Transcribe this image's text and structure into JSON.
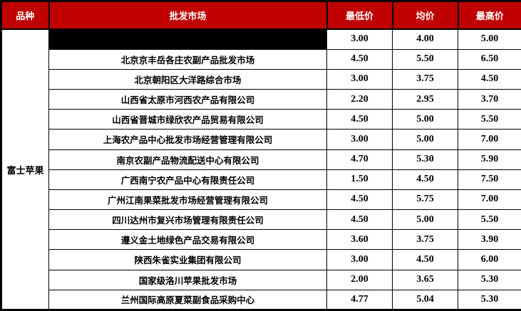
{
  "table": {
    "columns": [
      "品种",
      "批发市场",
      "最低价",
      "均价",
      "最高价"
    ],
    "variety": "富士苹果",
    "rows": [
      {
        "market": "",
        "redacted": true,
        "min": "3.00",
        "avg": "4.00",
        "max": "5.00"
      },
      {
        "market": "北京京丰岳各庄农副产品批发市场",
        "redacted": false,
        "min": "4.50",
        "avg": "5.50",
        "max": "6.50"
      },
      {
        "market": "北京朝阳区大洋路综合市场",
        "redacted": false,
        "min": "3.00",
        "avg": "3.75",
        "max": "4.50"
      },
      {
        "market": "山西省太原市河西农产品有限公司",
        "redacted": false,
        "min": "2.20",
        "avg": "2.95",
        "max": "3.70"
      },
      {
        "market": "山西省晋城市绿欣农产品贸易有限公司",
        "redacted": false,
        "min": "4.50",
        "avg": "5.00",
        "max": "5.50"
      },
      {
        "market": "上海农产品中心批发市场经营管理有限公司",
        "redacted": false,
        "min": "3.00",
        "avg": "5.00",
        "max": "7.00"
      },
      {
        "market": "南京农副产品物流配送中心有限公司",
        "redacted": false,
        "min": "4.70",
        "avg": "5.30",
        "max": "5.90"
      },
      {
        "market": "广西南宁农产品中心有限责任公司",
        "redacted": false,
        "min": "1.50",
        "avg": "4.50",
        "max": "7.50"
      },
      {
        "market": "广州江南果菜批发市场经营管理有限公司",
        "redacted": false,
        "min": "4.50",
        "avg": "5.75",
        "max": "7.00"
      },
      {
        "market": "四川达州市复兴市场管理有限责任公司",
        "redacted": false,
        "min": "4.50",
        "avg": "5.00",
        "max": "5.50"
      },
      {
        "market": "遵义金土地绿色产品交易有限公司",
        "redacted": false,
        "min": "3.60",
        "avg": "3.75",
        "max": "3.90"
      },
      {
        "market": "陕西朱雀实业集团有限公司",
        "redacted": false,
        "min": "3.00",
        "avg": "4.50",
        "max": "6.00"
      },
      {
        "market": "国家级洛川苹果批发市场",
        "redacted": false,
        "min": "2.00",
        "avg": "3.65",
        "max": "5.30"
      },
      {
        "market": "兰州国际高原夏菜副食品采购中心",
        "redacted": false,
        "min": "4.77",
        "avg": "5.04",
        "max": "5.30"
      }
    ]
  },
  "colors": {
    "header_bg": "#C00000",
    "header_text": "#FFFFFF",
    "border": "#000000",
    "redacted_bar": "#000000",
    "cell_bg": "#FFFFFF",
    "cell_text": "#000000"
  },
  "chart_data": {
    "type": "table",
    "title": "富士苹果批发市场价格表",
    "columns": [
      "品种",
      "批发市场",
      "最低价",
      "均价",
      "最高价"
    ],
    "variety": "富士苹果",
    "rows": [
      [
        "[黑条遮盖]",
        3.0,
        4.0,
        5.0
      ],
      [
        "北京京丰岳各庄农副产品批发市场",
        4.5,
        5.5,
        6.5
      ],
      [
        "北京朝阳区大洋路综合市场",
        3.0,
        3.75,
        4.5
      ],
      [
        "山西省太原市河西农产品有限公司",
        2.2,
        2.95,
        3.7
      ],
      [
        "山西省晋城市绿欣农产品贸易有限公司",
        4.5,
        5.0,
        5.5
      ],
      [
        "上海农产品中心批发市场经营管理有限公司",
        3.0,
        5.0,
        7.0
      ],
      [
        "南京农副产品物流配送中心有限公司",
        4.7,
        5.3,
        5.9
      ],
      [
        "广西南宁农产品中心有限责任公司",
        1.5,
        4.5,
        7.5
      ],
      [
        "广州江南果菜批发市场经营管理有限公司",
        4.5,
        5.75,
        7.0
      ],
      [
        "四川达州市复兴市场管理有限责任公司",
        4.5,
        5.0,
        5.5
      ],
      [
        "遵义金土地绿色产品交易有限公司",
        3.6,
        3.75,
        3.9
      ],
      [
        "陕西朱雀实业集团有限公司",
        3.0,
        4.5,
        6.0
      ],
      [
        "国家级洛川苹果批发市场",
        2.0,
        3.65,
        5.3
      ],
      [
        "兰州国际高原夏菜副食品采购中心",
        4.77,
        5.04,
        5.3
      ]
    ]
  }
}
